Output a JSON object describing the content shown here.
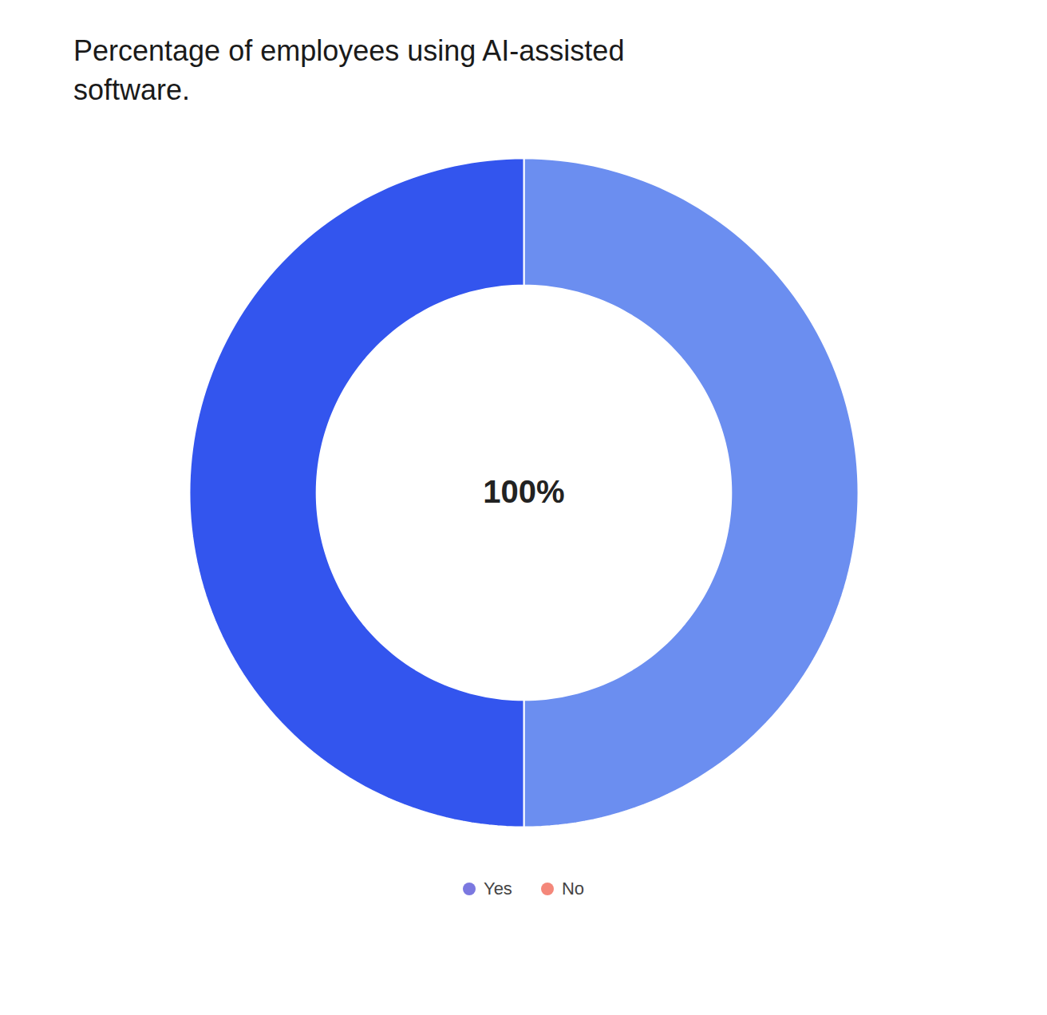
{
  "chart_data": {
    "type": "pie",
    "title": "Percentage of employees using AI-assisted\nsoftware.",
    "series": [
      {
        "name": "Yes",
        "color": "#7b78e0",
        "values": [
          50
        ]
      },
      {
        "name": "No",
        "color": "#f4877a",
        "values": [
          50
        ]
      }
    ],
    "colors": [
      "#6b8ef0",
      "#3355ee"
    ],
    "annotations": [
      {
        "text": "100%"
      }
    ],
    "legend": "bottom"
  }
}
